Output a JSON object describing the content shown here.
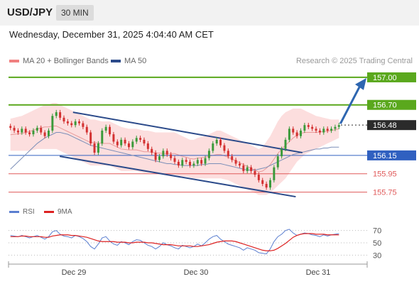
{
  "header": {
    "symbol": "USD/JPY",
    "timeframe": "30 MIN"
  },
  "datetime": "Wednesday, December 31, 2025 4:04:40 AM CET",
  "legend": [
    {
      "label": "MA 20 + Bollinger Bands",
      "color": "#f08080"
    },
    {
      "label": "MA 50",
      "color": "#2b4a8a"
    }
  ],
  "credit": "Research © 2025 Trading Central",
  "chart_data": {
    "type": "candlestick",
    "price_levels": [
      {
        "value": 157.0,
        "label": "157.00",
        "kind": "resistance",
        "color": "#5aa81d"
      },
      {
        "value": 156.7,
        "label": "156.70",
        "kind": "resistance",
        "color": "#5aa81d"
      },
      {
        "value": 156.48,
        "label": "156.48",
        "kind": "last",
        "color": "#2b2b2b"
      },
      {
        "value": 156.15,
        "label": "156.15",
        "kind": "pivot",
        "color": "#3060c0"
      },
      {
        "value": 155.95,
        "label": "155.95",
        "kind": "support",
        "color": "#e05a5a"
      },
      {
        "value": 155.75,
        "label": "155.75",
        "kind": "support",
        "color": "#e05a5a"
      }
    ],
    "x_labels": [
      "Dec 29",
      "Dec 30",
      "Dec 31"
    ],
    "ylim": [
      155.6,
      157.1
    ],
    "close": [
      156.45,
      156.42,
      156.4,
      156.44,
      156.4,
      156.38,
      156.42,
      156.45,
      156.4,
      156.36,
      156.42,
      156.58,
      156.62,
      156.56,
      156.52,
      156.5,
      156.48,
      156.52,
      156.5,
      156.46,
      156.4,
      156.28,
      156.18,
      156.28,
      156.42,
      156.46,
      156.38,
      156.3,
      156.26,
      156.32,
      156.28,
      156.24,
      156.3,
      156.34,
      156.32,
      156.28,
      156.22,
      156.18,
      156.1,
      156.14,
      156.2,
      156.16,
      156.12,
      156.08,
      156.04,
      156.1,
      156.08,
      156.04,
      156.06,
      156.1,
      156.06,
      156.12,
      156.2,
      156.28,
      156.32,
      156.26,
      156.2,
      156.14,
      156.1,
      156.06,
      156.04,
      155.98,
      156.02,
      155.98,
      155.94,
      155.88,
      155.84,
      155.8,
      155.88,
      156.02,
      156.14,
      156.22,
      156.32,
      156.44,
      156.4,
      156.36,
      156.42,
      156.48,
      156.46,
      156.44,
      156.42,
      156.4,
      156.44,
      156.42,
      156.44,
      156.46,
      156.48
    ],
    "ma50": [
      156.0,
      156.04,
      156.08,
      156.12,
      156.16,
      156.2,
      156.24,
      156.28,
      156.31,
      156.34,
      156.36,
      156.38,
      156.4,
      156.4,
      156.39,
      156.38,
      156.36,
      156.34,
      156.32,
      156.3,
      156.28,
      156.26,
      156.25,
      156.24,
      156.23,
      156.22,
      156.21,
      156.2,
      156.19,
      156.18,
      156.17,
      156.16,
      156.15,
      156.14,
      156.13,
      156.12,
      156.11,
      156.1,
      156.09,
      156.08,
      156.07,
      156.06,
      156.06,
      156.05,
      156.05,
      156.04,
      156.04,
      156.04,
      156.04,
      156.04,
      156.05,
      156.05,
      156.06,
      156.06,
      156.06,
      156.06,
      156.05,
      156.04,
      156.03,
      156.02,
      156.01,
      156.0,
      155.99,
      155.99,
      155.99,
      156.0,
      156.01,
      156.02,
      156.04,
      156.06,
      156.08,
      156.1,
      156.12,
      156.14,
      156.16,
      156.17,
      156.18,
      156.19,
      156.2,
      156.21,
      156.22,
      156.22,
      156.23,
      156.23,
      156.24,
      156.24,
      156.24
    ],
    "bb_upper": [
      156.55,
      156.56,
      156.57,
      156.58,
      156.6,
      156.62,
      156.64,
      156.66,
      156.68,
      156.7,
      156.7,
      156.72,
      156.72,
      156.7,
      156.68,
      156.66,
      156.64,
      156.62,
      156.6,
      156.58,
      156.56,
      156.54,
      156.54,
      156.53,
      156.52,
      156.52,
      156.52,
      156.5,
      156.48,
      156.46,
      156.45,
      156.44,
      156.44,
      156.44,
      156.43,
      156.42,
      156.42,
      156.41,
      156.4,
      156.4,
      156.4,
      156.4,
      156.4,
      156.4,
      156.38,
      156.36,
      156.34,
      156.32,
      156.32,
      156.34,
      156.35,
      156.36,
      156.38,
      156.4,
      156.42,
      156.42,
      156.4,
      156.38,
      156.36,
      156.34,
      156.32,
      156.3,
      156.28,
      156.26,
      156.24,
      156.22,
      156.24,
      156.3,
      156.36,
      156.44,
      156.52,
      156.58,
      156.62,
      156.64,
      156.66,
      156.66,
      156.66,
      156.64,
      156.62,
      156.6,
      156.58,
      156.57,
      156.56,
      156.55,
      156.54,
      156.54,
      156.54
    ],
    "bb_lower": [
      156.2,
      156.2,
      156.2,
      156.2,
      156.2,
      156.2,
      156.21,
      156.22,
      156.22,
      156.22,
      156.22,
      156.22,
      156.22,
      156.2,
      156.18,
      156.16,
      156.14,
      156.12,
      156.1,
      156.08,
      156.06,
      156.04,
      156.04,
      156.04,
      156.04,
      156.04,
      156.04,
      156.02,
      156.0,
      155.98,
      155.98,
      155.98,
      155.98,
      155.98,
      155.97,
      155.96,
      155.96,
      155.96,
      155.95,
      155.95,
      155.94,
      155.94,
      155.94,
      155.94,
      155.93,
      155.92,
      155.92,
      155.91,
      155.9,
      155.9,
      155.9,
      155.9,
      155.9,
      155.9,
      155.9,
      155.9,
      155.89,
      155.88,
      155.86,
      155.84,
      155.82,
      155.8,
      155.78,
      155.76,
      155.74,
      155.72,
      155.72,
      155.72,
      155.74,
      155.78,
      155.82,
      155.86,
      155.9,
      155.96,
      156.02,
      156.08,
      156.12,
      156.16,
      156.18,
      156.2,
      156.22,
      156.24,
      156.26,
      156.28,
      156.3,
      156.32,
      156.34
    ],
    "channel": [
      {
        "x0": 0.13,
        "y0": 156.62,
        "x1": 0.82,
        "y1": 156.18
      },
      {
        "x0": 0.09,
        "y0": 156.14,
        "x1": 0.8,
        "y1": 155.7
      }
    ],
    "rsi": {
      "labels": [
        "70",
        "50",
        "30"
      ],
      "levels": [
        70,
        50,
        30
      ],
      "values": [
        62,
        61,
        60,
        62,
        60,
        58,
        60,
        62,
        59,
        56,
        60,
        68,
        70,
        64,
        61,
        60,
        58,
        62,
        60,
        57,
        52,
        44,
        40,
        48,
        58,
        60,
        53,
        48,
        46,
        52,
        50,
        47,
        52,
        55,
        54,
        50,
        46,
        44,
        40,
        44,
        50,
        47,
        45,
        42,
        40,
        46,
        44,
        42,
        44,
        48,
        45,
        50,
        56,
        60,
        62,
        56,
        52,
        48,
        46,
        44,
        42,
        38,
        42,
        40,
        38,
        34,
        33,
        32,
        40,
        52,
        60,
        64,
        70,
        72,
        66,
        62,
        64,
        66,
        65,
        63,
        62,
        60,
        63,
        61,
        63,
        64,
        65
      ],
      "ma9": [
        60,
        60,
        60,
        61,
        61,
        60,
        60,
        60,
        60,
        59,
        59,
        61,
        62,
        63,
        63,
        63,
        62,
        62,
        61,
        60,
        59,
        57,
        55,
        53,
        52,
        52,
        52,
        52,
        51,
        51,
        51,
        50,
        50,
        51,
        51,
        51,
        50,
        50,
        49,
        48,
        47,
        47,
        47,
        46,
        45,
        45,
        45,
        45,
        44,
        44,
        45,
        46,
        47,
        49,
        51,
        52,
        53,
        53,
        53,
        52,
        50,
        48,
        46,
        44,
        42,
        40,
        38,
        37,
        37,
        38,
        41,
        45,
        49,
        54,
        59,
        62,
        64,
        65,
        65,
        65,
        64,
        64,
        64,
        63,
        63,
        63,
        63
      ]
    },
    "legend_rsi": [
      {
        "label": "RSI",
        "color": "#5b7fd0"
      },
      {
        "label": "9MA",
        "color": "#dd2222"
      }
    ]
  }
}
